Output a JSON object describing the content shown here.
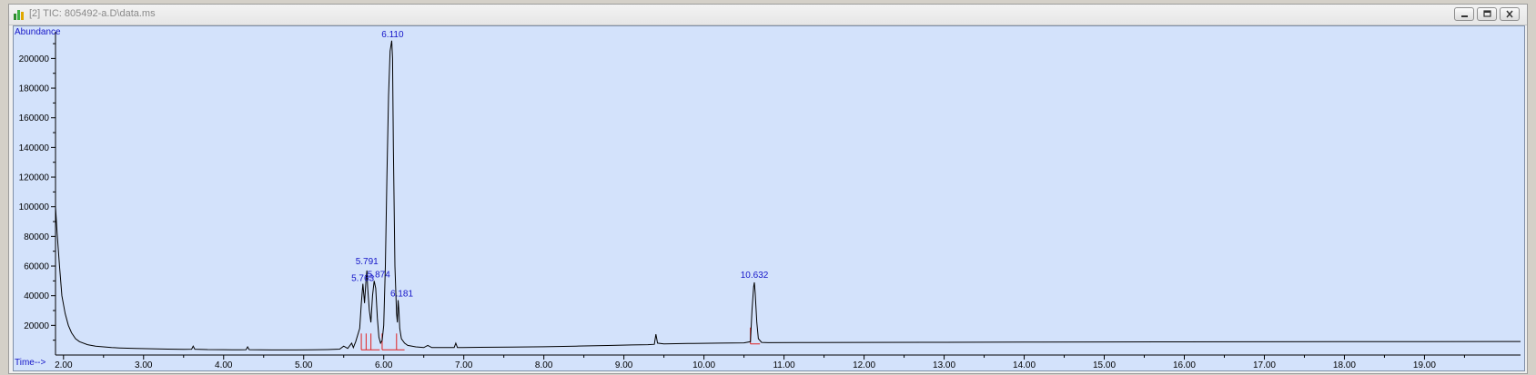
{
  "window": {
    "title": "[2] TIC: 805492-a.D\\data.ms",
    "buttons": [
      "minimize",
      "restore",
      "close"
    ]
  },
  "colors": {
    "plot_background": "#d3e2fb",
    "trace": "#000000",
    "peak_labels": "#1515c8",
    "integration_marks": "#e02020",
    "axis_text": "#000000"
  },
  "chart_data": {
    "type": "line",
    "title": "",
    "ylabel": "Abundance",
    "xlabel": "Time-->",
    "xlim": [
      1.9,
      20.2
    ],
    "ylim": [
      0,
      218000
    ],
    "y_ticks": [
      20000,
      40000,
      60000,
      80000,
      100000,
      120000,
      140000,
      160000,
      180000,
      200000
    ],
    "y_tick_labels": [
      "20000",
      "40000",
      "60000",
      "80000",
      "100000",
      "120000",
      "140000",
      "160000",
      "180000",
      "200000"
    ],
    "x_ticks": [
      2,
      3,
      4,
      5,
      6,
      7,
      8,
      9,
      10,
      11,
      12,
      13,
      14,
      15,
      16,
      17,
      18,
      19
    ],
    "x_tick_labels": [
      "2.00",
      "3.00",
      "4.00",
      "5.00",
      "6.00",
      "7.00",
      "8.00",
      "9.00",
      "10.00",
      "11.00",
      "12.00",
      "13.00",
      "14.00",
      "15.00",
      "16.00",
      "17.00",
      "18.00",
      "19.00"
    ],
    "grid": false,
    "series": [
      {
        "x": [
          1.9,
          1.92,
          1.95,
          1.98,
          2.02,
          2.06,
          2.1,
          2.15,
          2.2,
          2.3,
          2.4,
          2.5,
          2.6,
          2.7,
          2.9,
          3.1,
          3.3,
          3.5,
          3.6,
          3.62,
          3.64,
          3.8,
          4.0,
          4.2,
          4.28,
          4.3,
          4.32,
          4.6,
          4.9,
          5.1,
          5.3,
          5.45,
          5.5,
          5.55,
          5.6,
          5.62,
          5.65,
          5.7,
          5.72,
          5.74,
          5.76,
          5.78,
          5.79,
          5.8,
          5.82,
          5.84,
          5.86,
          5.88,
          5.9,
          5.92,
          5.94,
          5.96,
          5.98,
          6.0,
          6.02,
          6.04,
          6.06,
          6.08,
          6.1,
          6.11,
          6.12,
          6.14,
          6.16,
          6.17,
          6.18,
          6.19,
          6.2,
          6.22,
          6.26,
          6.3,
          6.4,
          6.5,
          6.55,
          6.6,
          6.8,
          6.88,
          6.9,
          6.92,
          7.2,
          7.6,
          8.0,
          8.4,
          8.8,
          9.1,
          9.3,
          9.38,
          9.4,
          9.42,
          9.5,
          9.8,
          10.2,
          10.5,
          10.58,
          10.6,
          10.62,
          10.63,
          10.64,
          10.66,
          10.68,
          10.72,
          10.8,
          11.2,
          12.0,
          13.0,
          14.0,
          15.0,
          16.0,
          17.0,
          18.0,
          19.0,
          20.0,
          20.2
        ],
        "y": [
          100000,
          82000,
          60000,
          40000,
          28000,
          20000,
          15000,
          11000,
          9000,
          7000,
          6000,
          5500,
          5000,
          4800,
          4500,
          4200,
          4000,
          3800,
          3900,
          6000,
          3900,
          3700,
          3600,
          3500,
          3600,
          5500,
          3600,
          3400,
          3400,
          3500,
          3700,
          4000,
          6000,
          4500,
          8000,
          5000,
          9000,
          18000,
          35000,
          48000,
          35000,
          52000,
          57000,
          45000,
          30000,
          22000,
          40000,
          50000,
          45000,
          25000,
          12000,
          8000,
          10000,
          20000,
          60000,
          120000,
          175000,
          205000,
          212000,
          200000,
          140000,
          60000,
          28000,
          22000,
          37000,
          30000,
          18000,
          11000,
          8000,
          6500,
          5500,
          5000,
          6500,
          5000,
          5000,
          5000,
          8000,
          5000,
          5200,
          5400,
          5600,
          6000,
          6400,
          6800,
          7000,
          7200,
          14000,
          8000,
          7500,
          7800,
          8000,
          8200,
          9000,
          30000,
          46000,
          49000,
          42000,
          22000,
          11000,
          8500,
          8300,
          8400,
          8500,
          8600,
          8700,
          8800,
          8900,
          8950,
          9000,
          9000,
          9100,
          9100
        ]
      }
    ],
    "annotations": [
      {
        "text": "6.110",
        "x": 6.11,
        "y": 212000
      },
      {
        "text": "5.791",
        "x": 5.79,
        "y": 57000
      },
      {
        "text": "5.763",
        "x": 5.76,
        "y": 48000
      },
      {
        "text": "5.874",
        "x": 5.87,
        "y": 50000
      },
      {
        "text": "6.181",
        "x": 6.18,
        "y": 37000
      },
      {
        "text": "10.632",
        "x": 10.63,
        "y": 49000
      }
    ],
    "integrated_peaks": [
      {
        "start": 5.72,
        "apex": 5.763,
        "end": 5.78
      },
      {
        "start": 5.78,
        "apex": 5.791,
        "end": 5.84
      },
      {
        "start": 5.84,
        "apex": 5.874,
        "end": 5.95
      },
      {
        "start": 5.98,
        "apex": 6.11,
        "end": 6.16
      },
      {
        "start": 6.16,
        "apex": 6.181,
        "end": 6.26
      },
      {
        "start": 10.58,
        "apex": 10.632,
        "end": 10.7
      }
    ]
  }
}
